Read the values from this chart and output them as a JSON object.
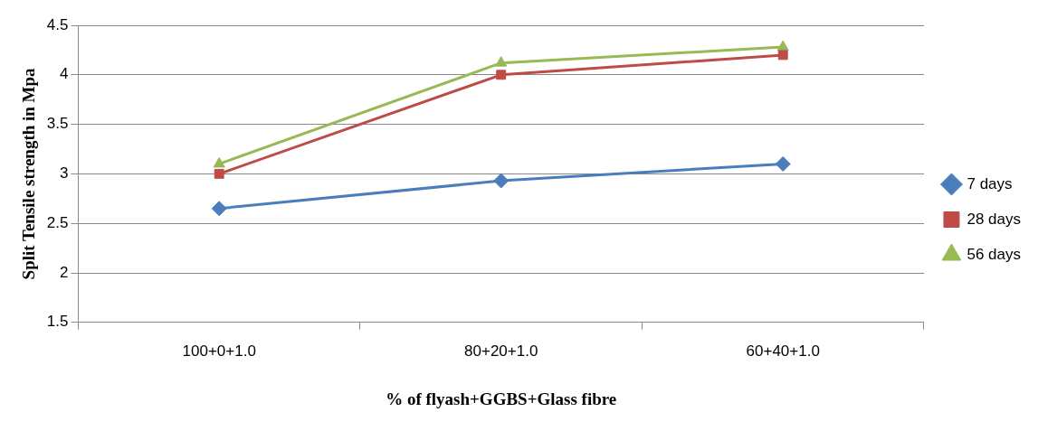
{
  "chart_data": {
    "type": "line",
    "xlabel": "% of flyash+GGBS+Glass fibre",
    "ylabel": "Split Tensile strength in Mpa",
    "categories": [
      "100+0+1.0",
      "80+20+1.0",
      "60+40+1.0"
    ],
    "series": [
      {
        "name": "7 days",
        "color": "#4a7ebb",
        "values": [
          2.65,
          2.93,
          3.1
        ],
        "marker": "diamond"
      },
      {
        "name": "28 days",
        "color": "#be4b48",
        "values": [
          3.0,
          4.0,
          4.2
        ],
        "marker": "square"
      },
      {
        "name": "56 days",
        "color": "#98b954",
        "values": [
          3.1,
          4.12,
          4.28
        ],
        "marker": "triangle"
      }
    ],
    "ylim": [
      1.5,
      4.5
    ],
    "yticks": [
      1.5,
      2,
      2.5,
      3,
      3.5,
      4,
      4.5
    ],
    "grid": "y",
    "legend": "right",
    "line_style": "solid"
  }
}
